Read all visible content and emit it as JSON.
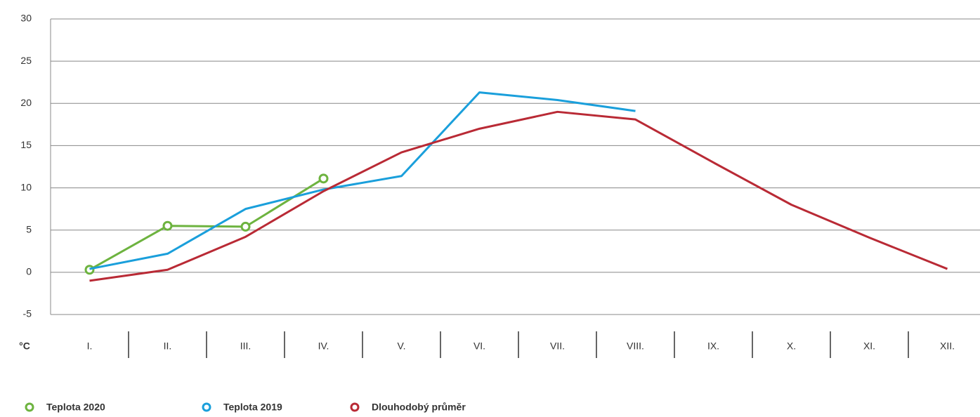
{
  "chart_data": {
    "type": "line",
    "y_unit": "°C",
    "categories": [
      "I.",
      "II.",
      "III.",
      "IV.",
      "V.",
      "VI.",
      "VII.",
      "VIII.",
      "IX.",
      "X.",
      "XI.",
      "XII."
    ],
    "ylim": [
      -5,
      30
    ],
    "yticks": [
      30,
      25,
      20,
      15,
      10,
      5,
      0,
      -5
    ],
    "grid": true,
    "legend": "bottom-left",
    "series": [
      {
        "name": "Teplota 2020",
        "color": "#6db33f",
        "markers": true,
        "values": [
          0.3,
          5.5,
          5.4,
          11.1,
          null,
          null,
          null,
          null,
          null,
          null,
          null,
          null
        ]
      },
      {
        "name": "Teplota 2019",
        "color": "#1a9fdb",
        "markers": false,
        "values": [
          0.4,
          2.2,
          7.5,
          9.8,
          11.4,
          21.3,
          20.4,
          19.1,
          null,
          null,
          null,
          null
        ]
      },
      {
        "name": "Dlouhodobý průměr",
        "color": "#b92a35",
        "markers": false,
        "values": [
          -1.0,
          0.3,
          4.2,
          9.6,
          14.2,
          17.0,
          19.0,
          18.1,
          13.0,
          8.0,
          4.1,
          0.4
        ]
      }
    ]
  }
}
